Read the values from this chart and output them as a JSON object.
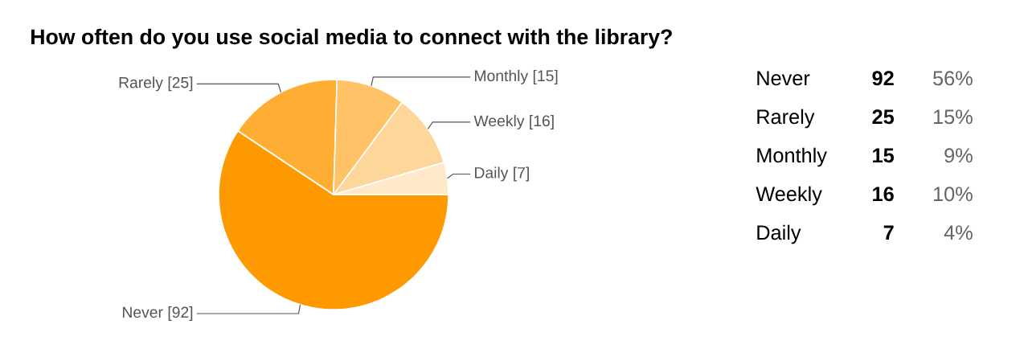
{
  "chart_data": [
    {
      "type": "pie",
      "title": "How often do you use social media to connect with the library?",
      "categories": [
        "Never",
        "Rarely",
        "Monthly",
        "Weekly",
        "Daily"
      ],
      "values": [
        92,
        25,
        15,
        16,
        7
      ],
      "colors": [
        "#ff9900",
        "#ffad33",
        "#ffc266",
        "#ffd699",
        "#ffe9c8"
      ],
      "value_labels": [
        "[92]",
        "[25]",
        "[15]",
        "[16]",
        "[7]"
      ]
    },
    {
      "type": "other",
      "annotations": [
        "Never",
        "92",
        "56%",
        "Rarely",
        "25",
        "15%",
        "Monthly",
        "15",
        "9%",
        "Weekly",
        "16",
        "10%",
        "Daily",
        "7",
        "4%"
      ]
    }
  ]
}
